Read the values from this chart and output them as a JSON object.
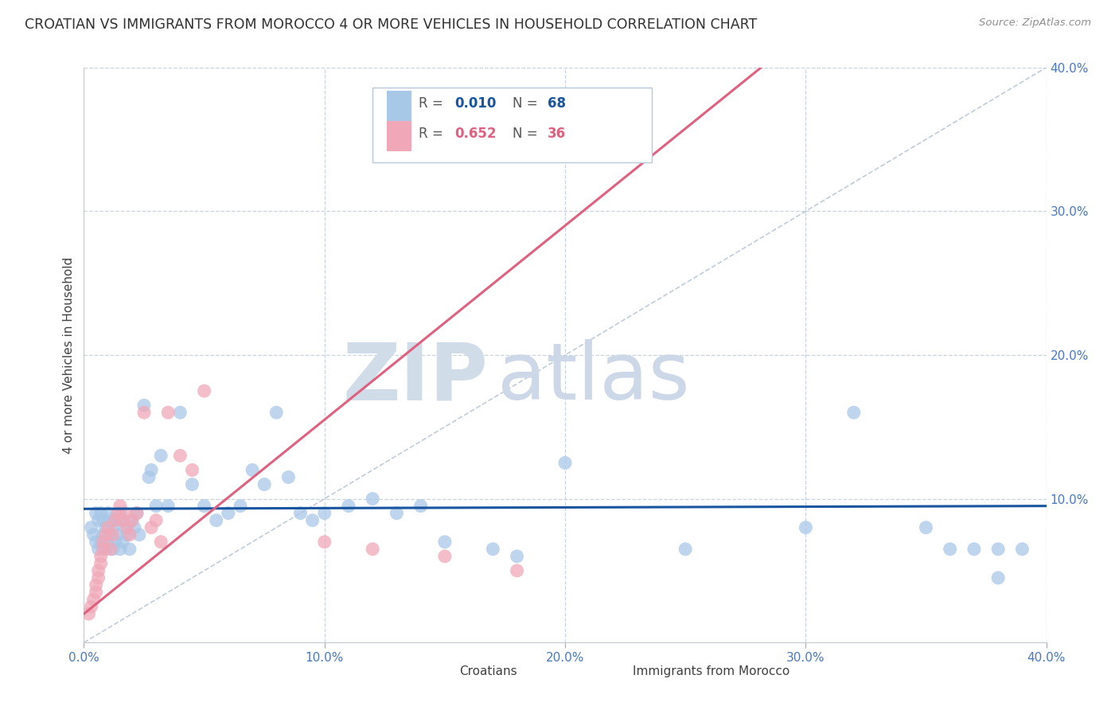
{
  "title": "CROATIAN VS IMMIGRANTS FROM MOROCCO 4 OR MORE VEHICLES IN HOUSEHOLD CORRELATION CHART",
  "source": "Source: ZipAtlas.com",
  "ylabel": "4 or more Vehicles in Household",
  "xlim": [
    0.0,
    0.4
  ],
  "ylim": [
    0.0,
    0.4
  ],
  "color_croatian": "#a8c8e8",
  "color_morocco": "#f0a8b8",
  "line_color_croatian": "#1855a0",
  "line_color_morocco": "#e06080",
  "diag_line_color": "#c0ccd8",
  "grid_color": "#c8d4e0",
  "title_color": "#303030",
  "axis_label_color": "#4878c0",
  "watermark_color": "#d8e8f4",
  "watermark_zip": "ZIP",
  "watermark_atlas": "atlas",
  "croatian_x": [
    0.003,
    0.004,
    0.005,
    0.005,
    0.006,
    0.006,
    0.007,
    0.007,
    0.008,
    0.008,
    0.009,
    0.009,
    0.01,
    0.01,
    0.011,
    0.011,
    0.012,
    0.012,
    0.013,
    0.013,
    0.014,
    0.015,
    0.015,
    0.016,
    0.016,
    0.017,
    0.018,
    0.019,
    0.02,
    0.021,
    0.022,
    0.023,
    0.025,
    0.027,
    0.028,
    0.03,
    0.032,
    0.035,
    0.04,
    0.045,
    0.05,
    0.055,
    0.06,
    0.065,
    0.07,
    0.075,
    0.08,
    0.085,
    0.09,
    0.095,
    0.1,
    0.11,
    0.12,
    0.13,
    0.14,
    0.15,
    0.17,
    0.18,
    0.2,
    0.25,
    0.3,
    0.32,
    0.35,
    0.36,
    0.37,
    0.38,
    0.38,
    0.39
  ],
  "croatian_y": [
    0.08,
    0.075,
    0.09,
    0.07,
    0.085,
    0.065,
    0.09,
    0.07,
    0.085,
    0.075,
    0.08,
    0.065,
    0.09,
    0.07,
    0.085,
    0.075,
    0.08,
    0.065,
    0.085,
    0.07,
    0.075,
    0.09,
    0.065,
    0.085,
    0.07,
    0.08,
    0.075,
    0.065,
    0.085,
    0.08,
    0.09,
    0.075,
    0.165,
    0.115,
    0.12,
    0.095,
    0.13,
    0.095,
    0.16,
    0.11,
    0.095,
    0.085,
    0.09,
    0.095,
    0.12,
    0.11,
    0.16,
    0.115,
    0.09,
    0.085,
    0.09,
    0.095,
    0.1,
    0.09,
    0.095,
    0.07,
    0.065,
    0.06,
    0.125,
    0.065,
    0.08,
    0.16,
    0.08,
    0.065,
    0.065,
    0.045,
    0.065,
    0.065
  ],
  "morocco_x": [
    0.002,
    0.003,
    0.004,
    0.005,
    0.005,
    0.006,
    0.006,
    0.007,
    0.007,
    0.008,
    0.008,
    0.009,
    0.01,
    0.011,
    0.012,
    0.013,
    0.014,
    0.015,
    0.016,
    0.017,
    0.018,
    0.019,
    0.02,
    0.022,
    0.025,
    0.028,
    0.03,
    0.032,
    0.035,
    0.04,
    0.045,
    0.05,
    0.1,
    0.12,
    0.15,
    0.18
  ],
  "morocco_y": [
    0.02,
    0.025,
    0.03,
    0.035,
    0.04,
    0.045,
    0.05,
    0.055,
    0.06,
    0.065,
    0.07,
    0.075,
    0.08,
    0.065,
    0.075,
    0.085,
    0.09,
    0.095,
    0.085,
    0.09,
    0.08,
    0.075,
    0.085,
    0.09,
    0.16,
    0.08,
    0.085,
    0.07,
    0.16,
    0.13,
    0.12,
    0.175,
    0.07,
    0.065,
    0.06,
    0.05
  ],
  "croatia_reg_slope": 0.005,
  "croatia_reg_intercept": 0.093,
  "morocco_reg_slope": 1.35,
  "morocco_reg_intercept": 0.02
}
